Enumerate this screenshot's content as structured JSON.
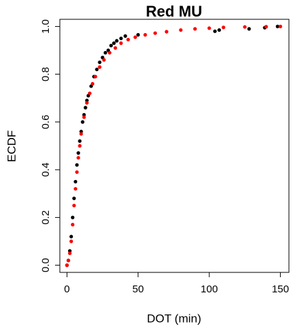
{
  "chart_data": {
    "type": "scatter",
    "title": "Red MU",
    "x_label": "DOT (min)",
    "y_label": "ECDF",
    "xlim": [
      -5,
      156
    ],
    "ylim": [
      -0.03,
      1.03
    ],
    "xticks": [
      0,
      50,
      100,
      150
    ],
    "yticks": [
      {
        "value": 0,
        "label": "0.0"
      },
      0.2,
      0.4,
      0.6,
      0.8,
      {
        "value": 1,
        "label": "1.0"
      }
    ],
    "series": [
      {
        "name": "black",
        "color": "#000000",
        "x": [
          0,
          1,
          2,
          3,
          4,
          5,
          6,
          7,
          8,
          9,
          10,
          11,
          12,
          13,
          14,
          15,
          17,
          19,
          21,
          23,
          25,
          27,
          29,
          31,
          33,
          35,
          38,
          41,
          50,
          104,
          107,
          128,
          139,
          148
        ],
        "values": [
          0,
          0.02,
          0.06,
          0.12,
          0.2,
          0.28,
          0.35,
          0.42,
          0.47,
          0.52,
          0.56,
          0.6,
          0.63,
          0.66,
          0.69,
          0.71,
          0.75,
          0.79,
          0.82,
          0.85,
          0.87,
          0.89,
          0.9,
          0.92,
          0.93,
          0.94,
          0.95,
          0.96,
          0.965,
          0.98,
          0.985,
          0.99,
          0.995,
          1.0
        ]
      },
      {
        "name": "red",
        "color": "#ff0000",
        "x": [
          0,
          1,
          2,
          3,
          4,
          5,
          6,
          7,
          8,
          9,
          10,
          12,
          14,
          16,
          18,
          20,
          23,
          26,
          30,
          34,
          38,
          43,
          48,
          55,
          62,
          70,
          80,
          90,
          100,
          110,
          125,
          140,
          150
        ],
        "values": [
          0,
          0.02,
          0.05,
          0.1,
          0.17,
          0.25,
          0.32,
          0.39,
          0.45,
          0.5,
          0.55,
          0.62,
          0.68,
          0.72,
          0.76,
          0.79,
          0.83,
          0.86,
          0.89,
          0.91,
          0.93,
          0.945,
          0.955,
          0.965,
          0.972,
          0.978,
          0.985,
          0.99,
          0.993,
          0.996,
          0.998,
          0.999,
          1.0
        ]
      }
    ]
  }
}
